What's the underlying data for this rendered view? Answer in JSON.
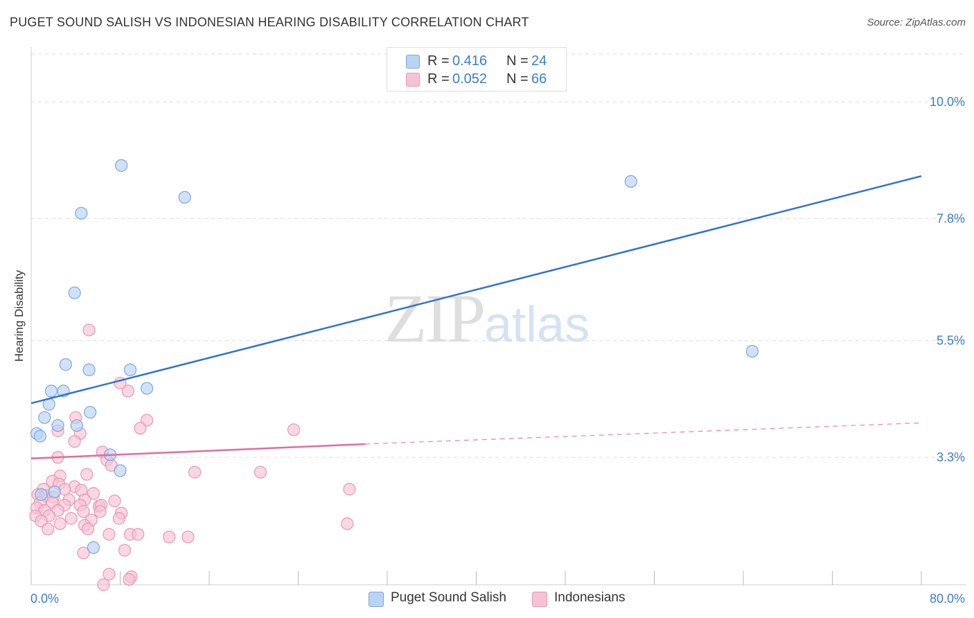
{
  "title": "PUGET SOUND SALISH VS INDONESIAN HEARING DISABILITY CORRELATION CHART",
  "source": "Source: ZipAtlas.com",
  "watermark": {
    "zip": "ZIP",
    "atlas": "atlas"
  },
  "legend": {
    "series1": {
      "r_label": "R =",
      "r_value": "0.416",
      "n_label": "N =",
      "n_value": "24"
    },
    "series2": {
      "r_label": "R =",
      "r_value": "0.052",
      "n_label": "N =",
      "n_value": "66"
    }
  },
  "bottom_legend": {
    "series1": "Puget Sound Salish",
    "series2": "Indonesians"
  },
  "colors": {
    "series1_fill": "#b9d3f2",
    "series1_stroke": "#7aa6e0",
    "series1_line": "#2f72d0",
    "series2_fill": "#f7c3d4",
    "series2_stroke": "#ea94b2",
    "series2_line": "#e8699a",
    "tick": "#3b7bd4",
    "grid": "#dddddd"
  },
  "chart_data": {
    "type": "scatter",
    "title": "PUGET SOUND SALISH VS INDONESIAN HEARING DISABILITY CORRELATION CHART",
    "xlabel": "",
    "ylabel": "Hearing Disability",
    "xlim": [
      0,
      80
    ],
    "ylim": [
      0.9,
      10.9
    ],
    "x_tick_labels": [
      "0.0%",
      "80.0%"
    ],
    "y_ticks": [
      3.3,
      5.5,
      7.8,
      10.0
    ],
    "y_tick_labels": [
      "3.3%",
      "5.5%",
      "7.8%",
      "10.0%"
    ],
    "grid": true,
    "series": [
      {
        "name": "Puget Sound Salish",
        "points": [
          [
            8.1,
            8.8
          ],
          [
            13.8,
            8.2
          ],
          [
            4.5,
            7.9
          ],
          [
            3.9,
            6.4
          ],
          [
            53.9,
            8.5
          ],
          [
            64.8,
            5.3
          ],
          [
            3.1,
            5.05
          ],
          [
            5.2,
            4.95
          ],
          [
            8.9,
            4.95
          ],
          [
            1.8,
            4.55
          ],
          [
            2.9,
            4.55
          ],
          [
            10.4,
            4.6
          ],
          [
            1.6,
            4.3
          ],
          [
            5.3,
            4.15
          ],
          [
            1.2,
            4.05
          ],
          [
            2.4,
            3.9
          ],
          [
            4.1,
            3.9
          ],
          [
            0.5,
            3.75
          ],
          [
            0.8,
            3.7
          ],
          [
            7.1,
            3.35
          ],
          [
            8.0,
            3.05
          ],
          [
            2.1,
            2.65
          ],
          [
            0.9,
            2.6
          ],
          [
            5.6,
            1.6
          ]
        ],
        "trend": {
          "x": [
            0,
            80
          ],
          "y": [
            4.32,
            8.6
          ]
        }
      },
      {
        "name": "Indonesians",
        "points": [
          [
            5.2,
            5.7
          ],
          [
            8.0,
            4.7
          ],
          [
            8.7,
            4.55
          ],
          [
            4.0,
            4.05
          ],
          [
            10.4,
            4.0
          ],
          [
            9.8,
            3.85
          ],
          [
            23.6,
            3.82
          ],
          [
            2.4,
            3.8
          ],
          [
            4.4,
            3.75
          ],
          [
            3.9,
            3.6
          ],
          [
            6.4,
            3.4
          ],
          [
            2.4,
            3.3
          ],
          [
            6.8,
            3.25
          ],
          [
            7.2,
            3.15
          ],
          [
            14.7,
            3.02
          ],
          [
            20.6,
            3.02
          ],
          [
            2.6,
            2.95
          ],
          [
            5.0,
            2.98
          ],
          [
            1.9,
            2.85
          ],
          [
            2.5,
            2.8
          ],
          [
            3.9,
            2.75
          ],
          [
            1.1,
            2.7
          ],
          [
            3.0,
            2.7
          ],
          [
            4.5,
            2.68
          ],
          [
            5.6,
            2.62
          ],
          [
            0.6,
            2.6
          ],
          [
            1.3,
            2.58
          ],
          [
            2.0,
            2.55
          ],
          [
            3.4,
            2.5
          ],
          [
            4.8,
            2.5
          ],
          [
            7.5,
            2.48
          ],
          [
            28.6,
            2.7
          ],
          [
            0.8,
            2.45
          ],
          [
            1.9,
            2.45
          ],
          [
            3.0,
            2.4
          ],
          [
            4.4,
            2.4
          ],
          [
            6.1,
            2.38
          ],
          [
            6.3,
            2.4
          ],
          [
            0.5,
            2.35
          ],
          [
            1.2,
            2.3
          ],
          [
            2.4,
            2.3
          ],
          [
            4.7,
            2.28
          ],
          [
            6.2,
            2.28
          ],
          [
            8.1,
            2.25
          ],
          [
            0.4,
            2.2
          ],
          [
            1.6,
            2.2
          ],
          [
            3.6,
            2.15
          ],
          [
            5.4,
            2.12
          ],
          [
            7.9,
            2.15
          ],
          [
            0.9,
            2.1
          ],
          [
            2.6,
            2.05
          ],
          [
            4.8,
            2.02
          ],
          [
            28.4,
            2.05
          ],
          [
            1.5,
            1.95
          ],
          [
            5.1,
            1.95
          ],
          [
            7.0,
            1.85
          ],
          [
            8.9,
            1.85
          ],
          [
            9.6,
            1.85
          ],
          [
            12.4,
            1.8
          ],
          [
            14.1,
            1.8
          ],
          [
            8.4,
            1.55
          ],
          [
            4.7,
            1.5
          ],
          [
            7.0,
            1.1
          ],
          [
            9.0,
            1.05
          ],
          [
            8.8,
            1.0
          ],
          [
            6.5,
            0.9
          ]
        ],
        "trend": {
          "x": [
            0,
            30
          ],
          "y": [
            3.28,
            3.55
          ]
        },
        "trend_dashed": {
          "x": [
            30,
            80
          ],
          "y": [
            3.55,
            3.95
          ]
        }
      }
    ]
  }
}
